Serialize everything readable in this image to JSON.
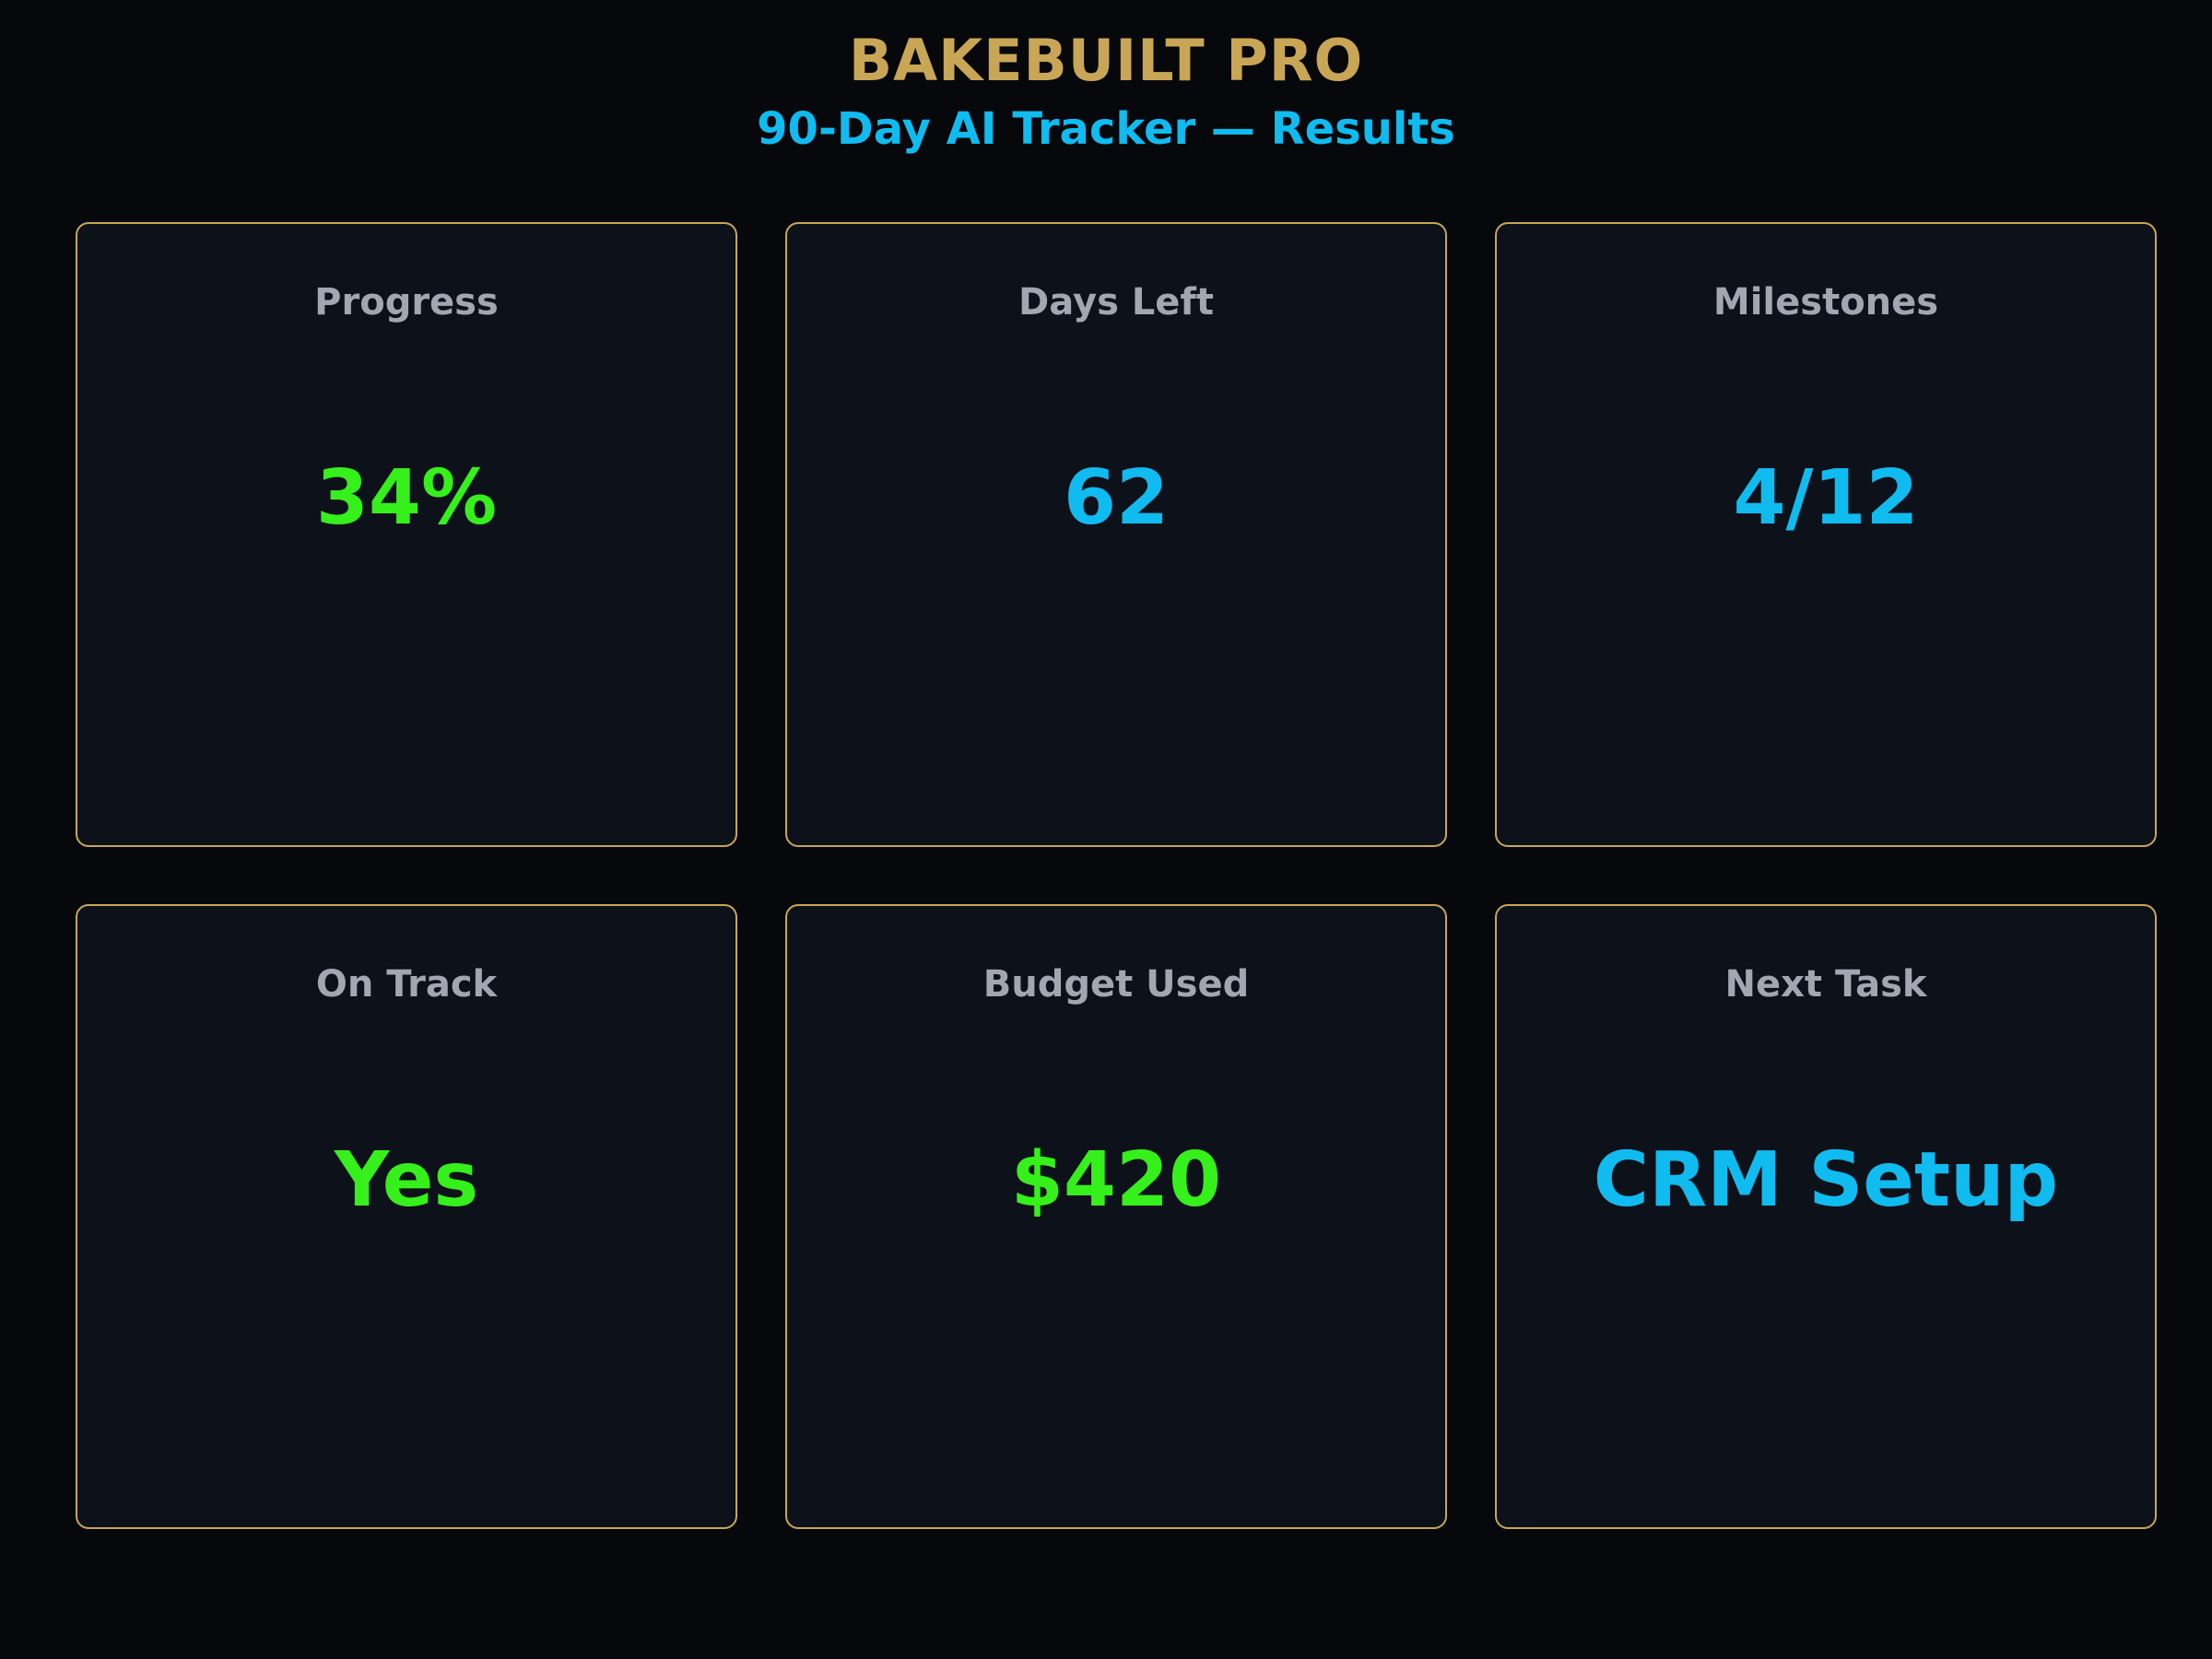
{
  "header": {
    "brand": "BAKEBUILT PRO",
    "subtitle": "90-Day AI Tracker — Results"
  },
  "cards": [
    {
      "label": "Progress",
      "value": "34%",
      "color": "#35f01b"
    },
    {
      "label": "Days Left",
      "value": "62",
      "color": "#10bbf0"
    },
    {
      "label": "Milestones",
      "value": "4/12",
      "color": "#10bbf0"
    },
    {
      "label": "On Track",
      "value": "Yes",
      "color": "#35f01b"
    },
    {
      "label": "Budget Used",
      "value": "$420",
      "color": "#35f01b"
    },
    {
      "label": "Next Task",
      "value": "CRM Setup",
      "color": "#10bbf0"
    }
  ],
  "colors": {
    "background": "#07080c",
    "card_background": "#0d1119",
    "card_border": "#c9a655",
    "brand": "#c9a655",
    "accent_blue": "#10bbf0",
    "accent_green": "#35f01b",
    "label_gray": "#a3a6b1"
  }
}
